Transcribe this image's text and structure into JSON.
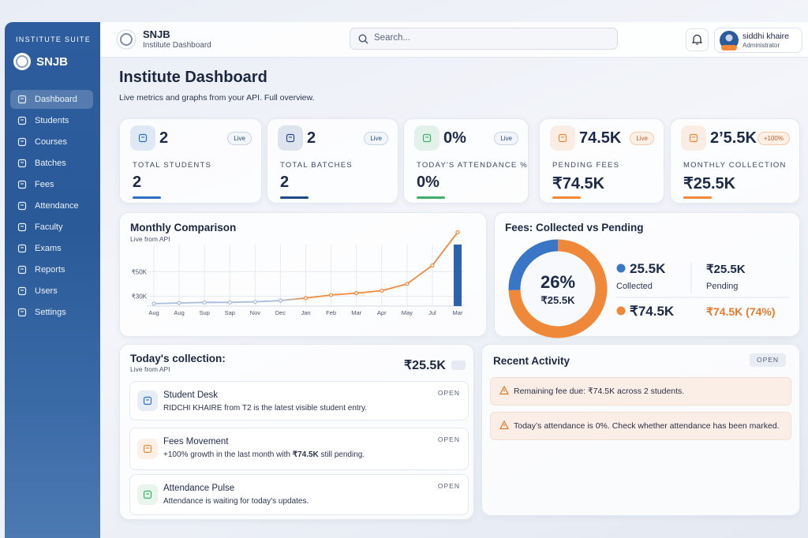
{
  "sidebar": {
    "suite": "INSTITUTE SUITE",
    "brand": "SNJB",
    "nav": [
      "Dashboard",
      "Students",
      "Courses",
      "Batches",
      "Fees",
      "Attendance",
      "Faculty",
      "Exams",
      "Reports",
      "Users",
      "Settings"
    ],
    "active": 0
  },
  "topbar": {
    "brand": "SNJB",
    "subtitle": "Institute Dashboard",
    "search_placeholder": "Search...",
    "user": {
      "name": "siddhi khaire",
      "role": "Administrator"
    }
  },
  "page": {
    "title": "Institute Dashboard",
    "subtitle": "Live metrics and graphs from your API. Full overview."
  },
  "stats": [
    {
      "value": "2",
      "badge": "Live",
      "label": "TOTAL STUDENTS",
      "big": "2",
      "color": "#2f6fc0"
    },
    {
      "value": "2",
      "badge": "Live",
      "label": "TOTAL BATCHES",
      "big": "2",
      "color": "#1f4a8a"
    },
    {
      "value": "0%",
      "badge": "Live",
      "label": "TODAY'S ATTENDANCE %",
      "big": "0%",
      "color": "#3fae6a"
    },
    {
      "value": "74.5K",
      "badge": "Live",
      "label": "PENDING FEES",
      "big": "₹74.5K",
      "color": "#f0883a"
    },
    {
      "value": "2’5.5K",
      "badge": "+100%",
      "label": "MONTHLY COLLECTION",
      "big": "₹25.5K",
      "color": "#f0883a"
    }
  ],
  "monthly_chart": {
    "type": "line",
    "title": "Monthly Comparison",
    "subtitle": "Live from API",
    "categories": [
      "Aug",
      "Aug",
      "Sup",
      "Sap",
      "Nov",
      "Dec",
      "Jan",
      "Feb",
      "Mar",
      "Apr",
      "May",
      "Jul",
      "Mar"
    ],
    "series": [
      {
        "values": [
          24000,
          24500,
          25000,
          25000,
          25500,
          26500,
          28500,
          31000,
          32500,
          34500,
          40000,
          55000,
          82000
        ],
        "color": "#f0883a"
      }
    ],
    "bar": {
      "values": [
        null,
        null,
        null,
        null,
        null,
        null,
        null,
        null,
        null,
        null,
        null,
        null,
        72000
      ],
      "color": "#2a62b0"
    },
    "ylim": [
      22000,
      72000
    ],
    "yticks": [
      {
        "value": 30000,
        "label": "₹30K"
      },
      {
        "value": 50000,
        "label": "₹50K"
      }
    ],
    "grid": true
  },
  "fees_chart": {
    "type": "donut",
    "title": "Fees: Collected vs Pending",
    "center_value": "26%",
    "center_label": "₹25.5K",
    "segments": [
      {
        "name": "Collected",
        "value": 25.5,
        "label": "25.5K",
        "color": "#3a76c6"
      },
      {
        "name": "Pending",
        "value": 74.5,
        "label": "₹74.5K",
        "color": "#f0883a"
      }
    ],
    "side": [
      {
        "value": "₹25.5K",
        "name": "Pending"
      },
      {
        "value": "₹74.5K (74%)"
      }
    ]
  },
  "collection": {
    "title": "Today's collection:",
    "subtitle": "Live from API",
    "amount": "₹25.5K",
    "items": [
      {
        "title": "Student Desk",
        "action": "OPEN",
        "text": [
          "RIDCHI KHAIRE from T2 is the latest visible student entry."
        ]
      },
      {
        "title": "Fees Movement",
        "action": "OPEN",
        "text": [
          "+100% growth in the last month with ",
          "₹74.5K",
          " still pending."
        ]
      },
      {
        "title": "Attendance Pulse",
        "action": "OPEN",
        "text": [
          "Attendance is waiting for today's updates."
        ]
      }
    ]
  },
  "activity": {
    "title": "Recent Activity",
    "action": "OPEN",
    "items": [
      "Remaining fee due: ₹74.5K across 2 students.",
      "Today’s attendance is 0%. Check whether attendance has been marked."
    ]
  }
}
